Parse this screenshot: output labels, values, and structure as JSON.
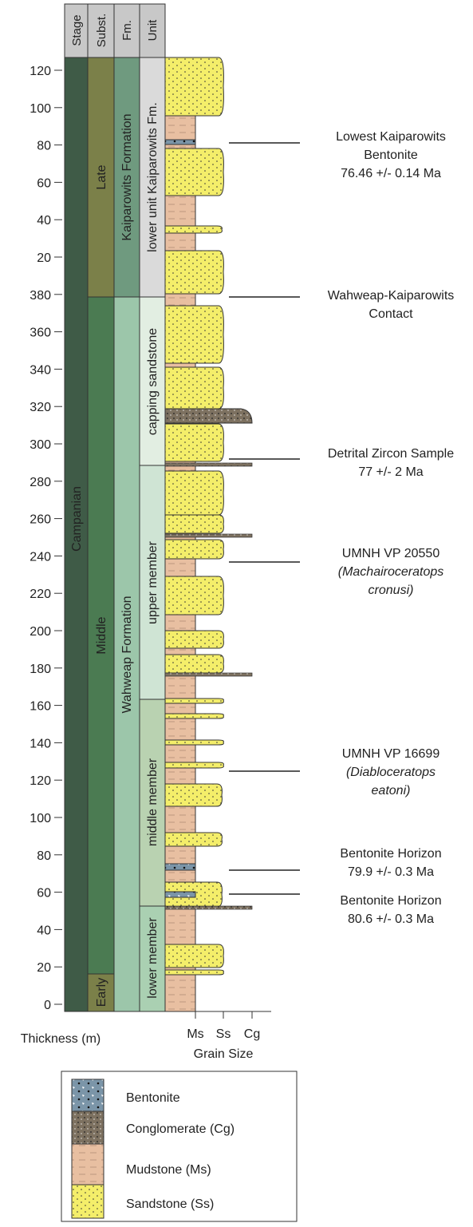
{
  "headers": [
    "Stage",
    "Subst.",
    "Fm.",
    "Unit"
  ],
  "thickness_labels": [
    120,
    100,
    80,
    60,
    40,
    20,
    380,
    360,
    340,
    320,
    300,
    280,
    260,
    240,
    220,
    200,
    180,
    160,
    140,
    120,
    100,
    80,
    60,
    40,
    20,
    0
  ],
  "stage": "Campanian",
  "substages": [
    "Late",
    "Middle",
    "Early"
  ],
  "formations": [
    "Kaiparowits Formation",
    "Wahweap Formation"
  ],
  "units": [
    "lower unit Kaiparowits Fm.",
    "capping sandstone",
    "upper member",
    "middle member",
    "lower member"
  ],
  "annotations": [
    [
      "Lowest Kaiparowits",
      "Bentonite",
      "76.46 +/- 0.14 Ma"
    ],
    [
      "Wahweap-Kaiparowits",
      "Contact"
    ],
    [
      "Detrital Zircon Sample",
      "77 +/- 2 Ma"
    ],
    [
      "UMNH VP 20550",
      "(Machairoceratops",
      "cronusi)"
    ],
    [
      "UMNH VP 16699",
      "(Diabloceratops",
      "eatoni)"
    ],
    [
      "Bentonite Horizon",
      "79.9 +/- 0.3 Ma"
    ],
    [
      "Bentonite Horizon",
      "80.6 +/- 0.3 Ma"
    ]
  ],
  "axis_title": "Thickness (m)",
  "grain_size": {
    "labels": [
      "Ms",
      "Ss",
      "Cg"
    ],
    "title": "Grain Size"
  },
  "legend": [
    "Bentonite",
    "Conglomerate (Cg)",
    "Mudstone (Ms)",
    "Sandstone (Ss)"
  ]
}
